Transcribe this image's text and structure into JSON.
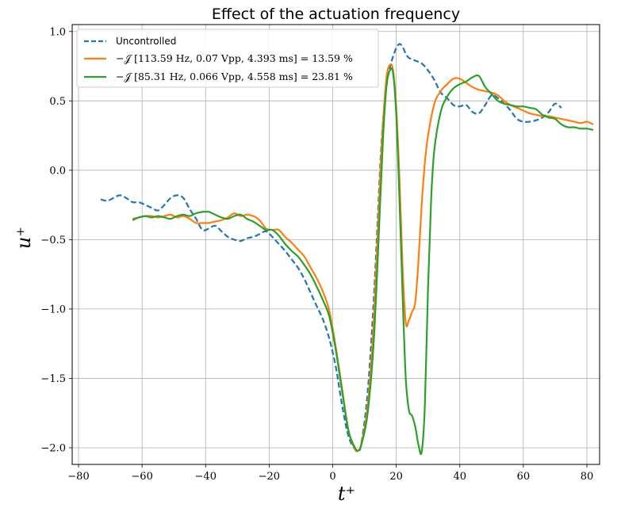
{
  "chart_data": {
    "type": "line",
    "title": "Effect of the actuation frequency",
    "xlabel": "t⁺",
    "ylabel": "u⁺",
    "xlim": [
      -82,
      84
    ],
    "ylim": [
      -2.12,
      1.05
    ],
    "xticks": [
      -80,
      -60,
      -40,
      -20,
      0,
      20,
      40,
      60,
      80
    ],
    "yticks": [
      -2.0,
      -1.5,
      -1.0,
      -0.5,
      0.0,
      0.5,
      1.0
    ],
    "xtick_labels": [
      "−80",
      "−60",
      "−40",
      "−20",
      "0",
      "20",
      "40",
      "60",
      "80"
    ],
    "ytick_labels": [
      "−2.0",
      "−1.5",
      "−1.0",
      "−0.5",
      "0.0",
      "0.5",
      "1.0"
    ],
    "grid": true,
    "legend_position": "top-left",
    "series": [
      {
        "name": "Uncontrolled",
        "color": "#1f77b4",
        "dash": true,
        "x": [
          -73,
          -71,
          -69,
          -67,
          -65,
          -63,
          -61,
          -59,
          -57,
          -55,
          -53,
          -51,
          -49,
          -47,
          -45,
          -43,
          -41,
          -39,
          -37,
          -35,
          -33,
          -31,
          -29,
          -27,
          -25,
          -23,
          -21,
          -19,
          -17,
          -15,
          -13,
          -11,
          -9,
          -7,
          -5,
          -3,
          -1,
          1,
          3,
          5,
          7,
          8,
          9,
          11,
          13,
          15,
          16,
          17,
          18,
          19,
          20,
          21,
          22,
          23,
          24,
          26,
          28,
          30,
          32,
          34,
          36,
          38,
          40,
          42,
          44,
          46,
          48,
          50,
          52,
          54,
          56,
          58,
          60,
          62,
          64,
          66,
          68,
          70,
          72
        ],
        "y": [
          -0.21,
          -0.22,
          -0.2,
          -0.18,
          -0.2,
          -0.23,
          -0.23,
          -0.25,
          -0.27,
          -0.29,
          -0.25,
          -0.2,
          -0.18,
          -0.2,
          -0.28,
          -0.35,
          -0.43,
          -0.42,
          -0.4,
          -0.44,
          -0.48,
          -0.5,
          -0.51,
          -0.49,
          -0.48,
          -0.46,
          -0.44,
          -0.48,
          -0.53,
          -0.58,
          -0.64,
          -0.7,
          -0.78,
          -0.88,
          -0.98,
          -1.08,
          -1.22,
          -1.42,
          -1.7,
          -1.92,
          -2.01,
          -2.02,
          -1.97,
          -1.6,
          -0.9,
          0.05,
          0.4,
          0.62,
          0.74,
          0.82,
          0.88,
          0.91,
          0.89,
          0.84,
          0.81,
          0.79,
          0.77,
          0.72,
          0.65,
          0.56,
          0.52,
          0.47,
          0.46,
          0.47,
          0.42,
          0.41,
          0.47,
          0.54,
          0.52,
          0.48,
          0.43,
          0.37,
          0.35,
          0.35,
          0.36,
          0.38,
          0.42,
          0.48,
          0.45
        ]
      },
      {
        "name": "−𝒥 [113.59 Hz, 0.07 Vpp, 4.393 ms] = 13.59 %",
        "color": "#ff7f0e",
        "dash": false,
        "x": [
          -63,
          -61,
          -59,
          -57,
          -55,
          -53,
          -51,
          -49,
          -47,
          -45,
          -43,
          -41,
          -39,
          -37,
          -35,
          -33,
          -31,
          -29,
          -27,
          -25,
          -23,
          -21,
          -19,
          -17,
          -15,
          -13,
          -11,
          -9,
          -7,
          -5,
          -3,
          -1,
          1,
          3,
          5,
          7,
          8,
          9,
          11,
          13,
          15,
          16,
          17,
          18,
          19,
          20,
          21,
          22,
          23,
          24,
          25,
          26,
          27,
          28,
          29,
          30,
          32,
          34,
          36,
          38,
          40,
          42,
          44,
          46,
          48,
          50,
          52,
          54,
          56,
          58,
          60,
          62,
          64,
          66,
          68,
          70,
          72,
          74,
          76,
          78,
          80,
          82
        ],
        "y": [
          -0.35,
          -0.34,
          -0.33,
          -0.33,
          -0.34,
          -0.33,
          -0.32,
          -0.34,
          -0.33,
          -0.35,
          -0.38,
          -0.38,
          -0.38,
          -0.37,
          -0.36,
          -0.34,
          -0.31,
          -0.33,
          -0.32,
          -0.33,
          -0.36,
          -0.42,
          -0.43,
          -0.43,
          -0.48,
          -0.52,
          -0.57,
          -0.62,
          -0.7,
          -0.78,
          -0.88,
          -1.02,
          -1.28,
          -1.58,
          -1.88,
          -2.01,
          -2.02,
          -1.97,
          -1.7,
          -1.05,
          -0.02,
          0.4,
          0.68,
          0.76,
          0.72,
          0.45,
          -0.05,
          -0.7,
          -1.1,
          -1.08,
          -1.02,
          -0.95,
          -0.65,
          -0.25,
          0.05,
          0.25,
          0.48,
          0.57,
          0.62,
          0.66,
          0.66,
          0.63,
          0.6,
          0.58,
          0.57,
          0.56,
          0.54,
          0.5,
          0.47,
          0.45,
          0.43,
          0.41,
          0.4,
          0.39,
          0.39,
          0.38,
          0.37,
          0.36,
          0.35,
          0.34,
          0.35,
          0.33
        ]
      },
      {
        "name": "−𝒥 [85.31 Hz, 0.066 Vpp, 4.558 ms] = 23.81 %",
        "color": "#2ca02c",
        "dash": false,
        "x": [
          -63,
          -61,
          -59,
          -57,
          -55,
          -53,
          -51,
          -49,
          -47,
          -45,
          -43,
          -41,
          -39,
          -37,
          -35,
          -33,
          -31,
          -29,
          -27,
          -25,
          -23,
          -21,
          -19,
          -17,
          -15,
          -13,
          -11,
          -9,
          -7,
          -5,
          -3,
          -1,
          1,
          3,
          5,
          7,
          8,
          9,
          11,
          13,
          15,
          16,
          17,
          18,
          19,
          20,
          21,
          22,
          23,
          24,
          25,
          26,
          27,
          28,
          29,
          30,
          31,
          32,
          34,
          36,
          38,
          40,
          42,
          44,
          46,
          48,
          50,
          52,
          54,
          56,
          58,
          60,
          62,
          64,
          66,
          68,
          70,
          72,
          74,
          76,
          78,
          80,
          82
        ],
        "y": [
          -0.36,
          -0.34,
          -0.33,
          -0.34,
          -0.33,
          -0.34,
          -0.35,
          -0.33,
          -0.32,
          -0.33,
          -0.31,
          -0.3,
          -0.3,
          -0.32,
          -0.34,
          -0.35,
          -0.33,
          -0.32,
          -0.35,
          -0.37,
          -0.4,
          -0.43,
          -0.43,
          -0.47,
          -0.53,
          -0.58,
          -0.62,
          -0.68,
          -0.75,
          -0.84,
          -0.94,
          -1.06,
          -1.3,
          -1.6,
          -1.88,
          -2.0,
          -2.02,
          -1.98,
          -1.75,
          -1.2,
          -0.2,
          0.3,
          0.62,
          0.72,
          0.7,
          0.4,
          -0.2,
          -0.9,
          -1.5,
          -1.73,
          -1.77,
          -1.85,
          -1.98,
          -2.03,
          -1.7,
          -0.85,
          -0.2,
          0.15,
          0.42,
          0.53,
          0.59,
          0.62,
          0.64,
          0.67,
          0.68,
          0.6,
          0.55,
          0.5,
          0.48,
          0.47,
          0.46,
          0.46,
          0.45,
          0.44,
          0.4,
          0.38,
          0.37,
          0.33,
          0.31,
          0.31,
          0.3,
          0.3,
          0.29
        ]
      }
    ]
  }
}
